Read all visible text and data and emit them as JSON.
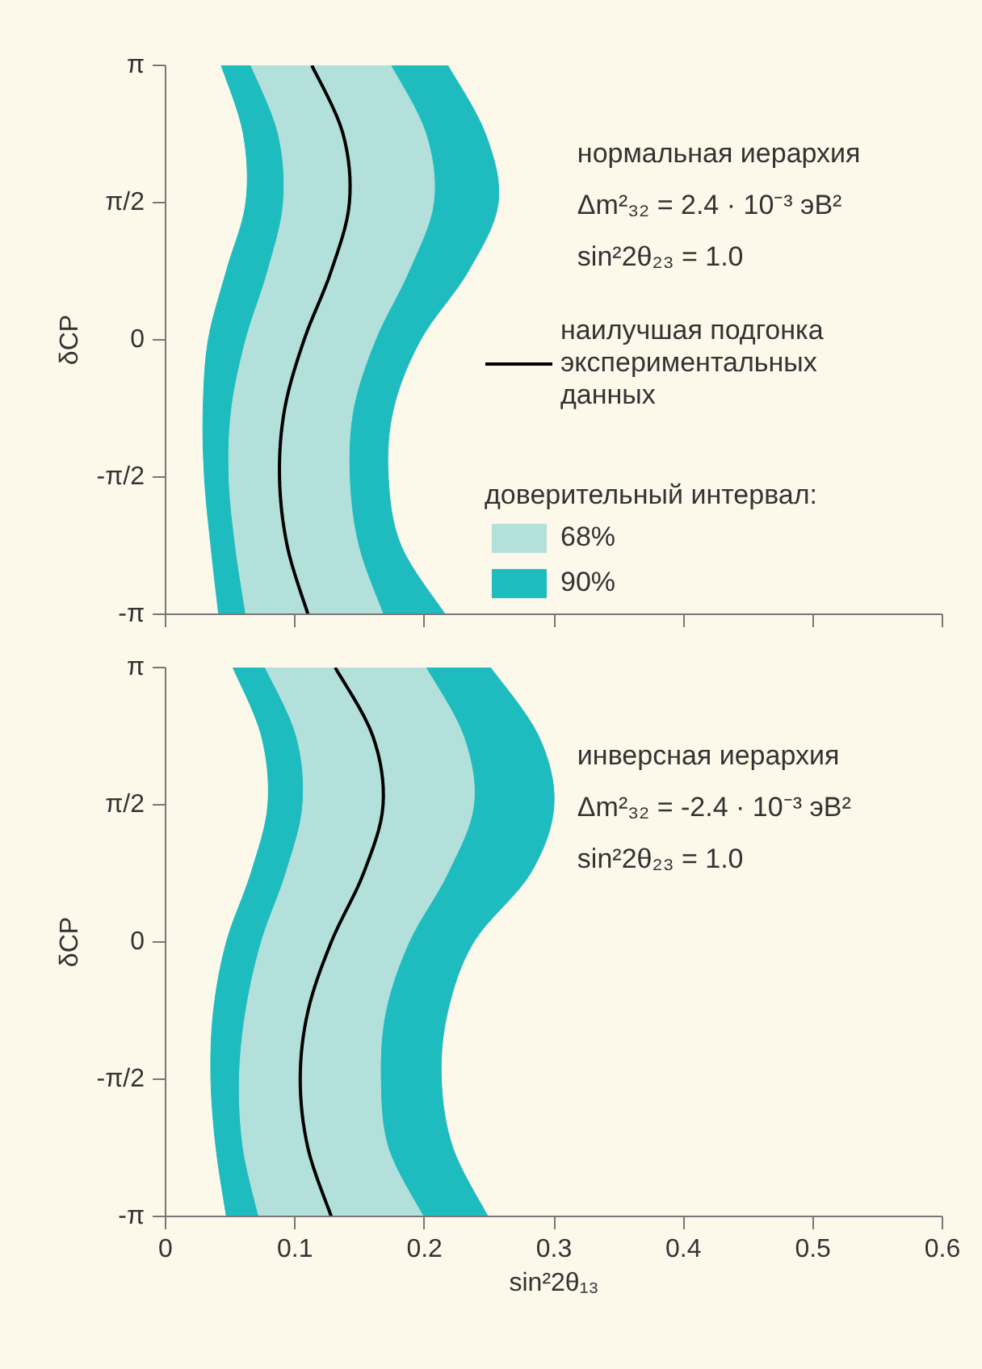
{
  "chart_data": [
    {
      "type": "line",
      "ylabel": "δCP",
      "xlim": [
        0,
        0.6
      ],
      "xticks": [
        0,
        0.1,
        0.2,
        0.3,
        0.4,
        0.5,
        0.6
      ],
      "ylim": [
        -3.14,
        3.14
      ],
      "yticks": [
        {
          "value": -3.14,
          "label": "-π"
        },
        {
          "value": -1.57,
          "label": "-π/2"
        },
        {
          "value": 0,
          "label": "0"
        },
        {
          "value": 1.57,
          "label": "π/2"
        },
        {
          "value": 3.14,
          "label": "π"
        }
      ],
      "tick_labels": "y",
      "legend": "right",
      "legend_title": "доверительный интервал:",
      "annotations": [
        "нормальная иерархия",
        "Δm²₃₂ = 2.4 · 10⁻³ эВ²",
        "sin²2θ₂₃ = 1.0"
      ],
      "series": [
        {
          "name": "90%",
          "type": "area",
          "color": "#1fbcbf",
          "x": [
            0.043,
            0.06,
            0.062,
            0.047,
            0.033,
            0.029,
            0.03,
            0.035,
            0.041,
            0.216,
            0.182,
            0.172,
            0.176,
            0.197,
            0.234,
            0.257,
            0.247,
            0.218
          ],
          "values": [
            3.14,
            2.36,
            1.57,
            0.79,
            0,
            -0.79,
            -1.57,
            -2.36,
            -3.14,
            -3.14,
            -2.36,
            -1.57,
            -0.79,
            0,
            0.79,
            1.57,
            2.36,
            3.14
          ]
        },
        {
          "name": "68%",
          "type": "area",
          "color": "#b3e0db",
          "x": [
            0.066,
            0.087,
            0.091,
            0.079,
            0.062,
            0.051,
            0.049,
            0.054,
            0.062,
            0.168,
            0.149,
            0.142,
            0.145,
            0.162,
            0.188,
            0.207,
            0.201,
            0.174
          ],
          "values": [
            3.14,
            2.36,
            1.57,
            0.79,
            0,
            -0.79,
            -1.57,
            -2.36,
            -3.14,
            -3.14,
            -2.36,
            -1.57,
            -0.79,
            0,
            0.79,
            1.57,
            2.36,
            3.14
          ]
        },
        {
          "name": "наилучшая подгонка\nэкспериментальных\nданных",
          "color": "#000000",
          "x": [
            0.113,
            0.137,
            0.142,
            0.128,
            0.107,
            0.092,
            0.088,
            0.094,
            0.11
          ],
          "values": [
            3.14,
            2.36,
            1.57,
            0.79,
            0,
            -0.79,
            -1.57,
            -2.36,
            -3.14
          ]
        }
      ]
    },
    {
      "type": "line",
      "xlabel": "sin²2θ₁₃",
      "ylabel": "δCP",
      "xlim": [
        0,
        0.6
      ],
      "xticks": [
        0,
        0.1,
        0.2,
        0.3,
        0.4,
        0.5,
        0.6
      ],
      "ylim": [
        -3.14,
        3.14
      ],
      "yticks": [
        {
          "value": -3.14,
          "label": "-π"
        },
        {
          "value": -1.57,
          "label": "-π/2"
        },
        {
          "value": 0,
          "label": "0"
        },
        {
          "value": 1.57,
          "label": "π/2"
        },
        {
          "value": 3.14,
          "label": "π"
        }
      ],
      "annotations": [
        "инверсная иерархия",
        "Δm²₃₂ = -2.4 · 10⁻³ эВ²",
        "sin²2θ₂₃ = 1.0"
      ],
      "series": [
        {
          "type": "area",
          "color": "#1fbcbf",
          "x": [
            0.052,
            0.074,
            0.079,
            0.066,
            0.047,
            0.037,
            0.035,
            0.039,
            0.047,
            0.249,
            0.222,
            0.213,
            0.218,
            0.238,
            0.282,
            0.3,
            0.288,
            0.251
          ],
          "values": [
            3.14,
            2.36,
            1.57,
            0.79,
            0,
            -0.79,
            -1.57,
            -2.36,
            -3.14,
            -3.14,
            -2.36,
            -1.57,
            -0.79,
            0,
            0.79,
            1.57,
            2.36,
            3.14
          ]
        },
        {
          "type": "area",
          "color": "#b3e0db",
          "x": [
            0.077,
            0.101,
            0.106,
            0.093,
            0.074,
            0.062,
            0.057,
            0.06,
            0.072,
            0.199,
            0.172,
            0.166,
            0.17,
            0.188,
            0.218,
            0.238,
            0.23,
            0.201
          ],
          "values": [
            3.14,
            2.36,
            1.57,
            0.79,
            0,
            -0.79,
            -1.57,
            -2.36,
            -3.14,
            -3.14,
            -2.36,
            -1.57,
            -0.79,
            0,
            0.79,
            1.57,
            2.36,
            3.14
          ]
        },
        {
          "color": "#000000",
          "x": [
            0.131,
            0.16,
            0.168,
            0.153,
            0.128,
            0.11,
            0.104,
            0.11,
            0.128
          ],
          "values": [
            3.14,
            2.36,
            1.57,
            0.79,
            0,
            -0.79,
            -1.57,
            -2.36,
            -3.14
          ]
        }
      ]
    }
  ]
}
